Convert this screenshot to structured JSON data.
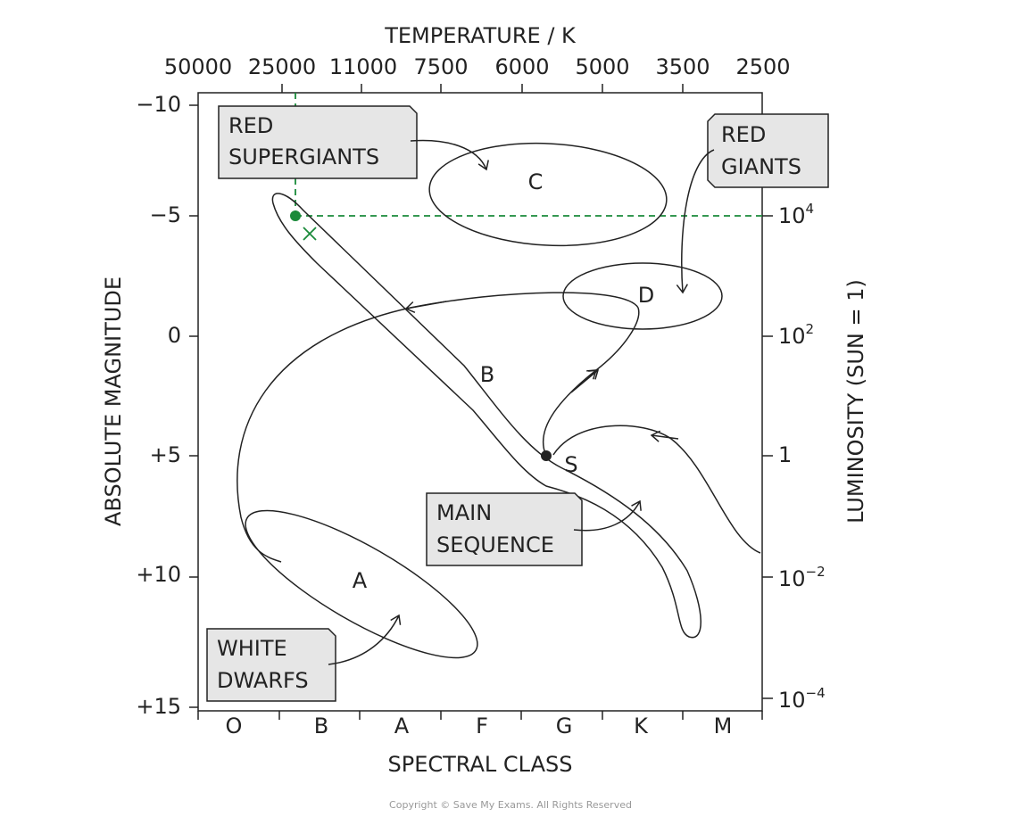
{
  "axes": {
    "top": {
      "title": "TEMPERATURE / K",
      "ticks": [
        "50000",
        "25000",
        "11000",
        "7500",
        "6000",
        "5000",
        "3500",
        "2500"
      ]
    },
    "bottom": {
      "title": "SPECTRAL CLASS",
      "ticks": [
        "O",
        "B",
        "A",
        "F",
        "G",
        "K",
        "M"
      ]
    },
    "left": {
      "title": "ABSOLUTE MAGNITUDE",
      "ticks": [
        "−10",
        "−5",
        "0",
        "+5",
        "+10",
        "+15"
      ]
    },
    "right": {
      "title": "LUMINOSITY (SUN = 1)",
      "ticks": [
        {
          "base": "10",
          "exp": "4"
        },
        {
          "base": "10",
          "exp": "2"
        },
        {
          "base": "1"
        },
        {
          "base": "10",
          "exp": "−2"
        },
        {
          "base": "10",
          "exp": "−4"
        }
      ]
    }
  },
  "regions": [
    "C",
    "B",
    "D",
    "A",
    "S"
  ],
  "callouts": [
    {
      "lines": [
        "RED",
        "SUPERGIANTS"
      ]
    },
    {
      "lines": [
        "RED",
        "GIANTS"
      ]
    },
    {
      "lines": [
        "MAIN",
        "SEQUENCE"
      ]
    },
    {
      "lines": [
        "WHITE",
        "DWARFS"
      ]
    }
  ],
  "footer": {
    "copyright": "Copyright © Save My Exams. All Rights Reserved"
  }
}
